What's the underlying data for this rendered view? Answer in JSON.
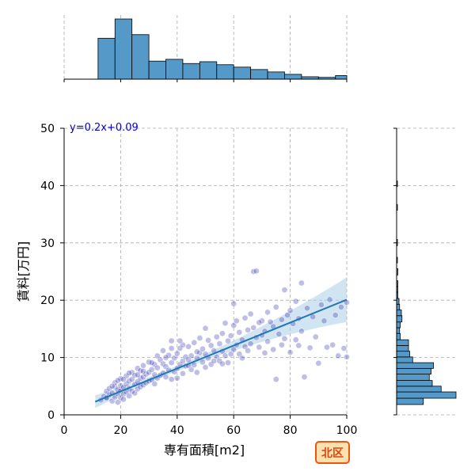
{
  "chart_data": {
    "type": "scatter",
    "xlabel": "専有面積[m2]",
    "ylabel": "賃料[万円]",
    "xlim": [
      0,
      100
    ],
    "ylim": [
      0,
      50
    ],
    "xticks": [
      0,
      20,
      40,
      60,
      80,
      100
    ],
    "yticks": [
      0,
      10,
      20,
      30,
      40,
      50
    ],
    "grid": true,
    "regression": {
      "equation": "y=0.2x+0.09",
      "slope": 0.2,
      "intercept": 0.09,
      "x_range": [
        11,
        100
      ]
    },
    "scatter": {
      "color": "#1a1aa6",
      "points": [
        [
          13,
          2.6
        ],
        [
          14,
          3.2
        ],
        [
          15,
          2.9
        ],
        [
          15,
          4.1
        ],
        [
          16,
          3.5
        ],
        [
          16,
          4.6
        ],
        [
          17,
          2.4
        ],
        [
          17,
          3.8
        ],
        [
          18,
          3.1
        ],
        [
          18,
          4.9
        ],
        [
          18,
          5.6
        ],
        [
          19,
          2.2
        ],
        [
          19,
          3.7
        ],
        [
          19,
          4.4
        ],
        [
          20,
          3.0
        ],
        [
          20,
          4.2
        ],
        [
          20,
          5.1
        ],
        [
          20,
          6.3
        ],
        [
          21,
          3.6
        ],
        [
          21,
          4.8
        ],
        [
          21,
          2.7
        ],
        [
          22,
          4.0
        ],
        [
          22,
          5.4
        ],
        [
          22,
          6.8
        ],
        [
          23,
          3.3
        ],
        [
          23,
          4.6
        ],
        [
          23,
          5.9
        ],
        [
          24,
          4.1
        ],
        [
          24,
          6.2
        ],
        [
          24,
          7.4
        ],
        [
          25,
          3.8
        ],
        [
          25,
          5.3
        ],
        [
          25,
          6.9
        ],
        [
          26,
          4.5
        ],
        [
          26,
          5.8
        ],
        [
          26,
          8.1
        ],
        [
          27,
          4.9
        ],
        [
          27,
          6.4
        ],
        [
          27,
          7.7
        ],
        [
          28,
          5.2
        ],
        [
          28,
          6.6
        ],
        [
          28,
          8.6
        ],
        [
          29,
          5.6
        ],
        [
          29,
          7.1
        ],
        [
          30,
          5.9
        ],
        [
          30,
          7.4
        ],
        [
          30,
          9.2
        ],
        [
          31,
          6.1
        ],
        [
          31,
          7.9
        ],
        [
          32,
          5.4
        ],
        [
          32,
          7.0
        ],
        [
          32,
          8.8
        ],
        [
          33,
          6.4
        ],
        [
          33,
          8.2
        ],
        [
          34,
          6.9
        ],
        [
          34,
          9.6
        ],
        [
          35,
          7.3
        ],
        [
          35,
          8.9
        ],
        [
          35,
          11.2
        ],
        [
          36,
          6.6
        ],
        [
          36,
          8.4
        ],
        [
          37,
          7.8
        ],
        [
          37,
          10.4
        ],
        [
          38,
          6.2
        ],
        [
          38,
          9.1
        ],
        [
          38,
          12.9
        ],
        [
          39,
          7.5
        ],
        [
          39,
          9.9
        ],
        [
          40,
          8.1
        ],
        [
          40,
          10.7
        ],
        [
          40,
          6.4
        ],
        [
          41,
          8.8
        ],
        [
          41,
          11.6
        ],
        [
          42,
          7.2
        ],
        [
          42,
          9.4
        ],
        [
          42,
          12.2
        ],
        [
          43,
          8.5
        ],
        [
          43,
          10.1
        ],
        [
          44,
          9.6
        ],
        [
          44,
          11.9
        ],
        [
          45,
          7.9
        ],
        [
          45,
          10.3
        ],
        [
          46,
          8.7
        ],
        [
          46,
          12.6
        ],
        [
          47,
          9.9
        ],
        [
          47,
          7.4
        ],
        [
          48,
          10.8
        ],
        [
          48,
          13.4
        ],
        [
          49,
          9.2
        ],
        [
          49,
          11.5
        ],
        [
          50,
          8.3
        ],
        [
          50,
          10.6
        ],
        [
          50,
          15.1
        ],
        [
          51,
          9.9
        ],
        [
          52,
          12.1
        ],
        [
          52,
          8.8
        ],
        [
          53,
          11.2
        ],
        [
          54,
          13.6
        ],
        [
          54,
          10.1
        ],
        [
          55,
          9.4
        ],
        [
          55,
          12.4
        ],
        [
          56,
          11.1
        ],
        [
          56,
          14.2
        ],
        [
          57,
          10.3
        ],
        [
          57,
          16.0
        ],
        [
          58,
          12.9
        ],
        [
          58,
          9.1
        ],
        [
          59,
          13.8
        ],
        [
          60,
          11.4
        ],
        [
          60,
          15.6
        ],
        [
          60,
          19.4
        ],
        [
          61,
          12.2
        ],
        [
          62,
          10.6
        ],
        [
          62,
          14.4
        ],
        [
          63,
          13.1
        ],
        [
          64,
          16.9
        ],
        [
          64,
          11.9
        ],
        [
          65,
          14.8
        ],
        [
          66,
          12.4
        ],
        [
          66,
          17.6
        ],
        [
          67,
          15.2
        ],
        [
          67,
          25.0
        ],
        [
          68,
          13.5
        ],
        [
          68,
          25.1
        ],
        [
          69,
          11.8
        ],
        [
          70,
          16.4
        ],
        [
          70,
          13.9
        ],
        [
          71,
          14.6
        ],
        [
          72,
          17.9
        ],
        [
          72,
          12.8
        ],
        [
          73,
          16.2
        ],
        [
          74,
          15.4
        ],
        [
          75,
          6.2
        ],
        [
          75,
          18.8
        ],
        [
          76,
          14.1
        ],
        [
          77,
          16.6
        ],
        [
          78,
          21.8
        ],
        [
          78,
          13.3
        ],
        [
          79,
          17.4
        ],
        [
          80,
          18.2
        ],
        [
          81,
          15.9
        ],
        [
          82,
          19.8
        ],
        [
          82,
          13.1
        ],
        [
          83,
          16.8
        ],
        [
          84,
          23.0
        ],
        [
          84,
          14.6
        ],
        [
          85,
          6.6
        ],
        [
          86,
          18.6
        ],
        [
          88,
          17.1
        ],
        [
          89,
          13.6
        ],
        [
          90,
          9.0
        ],
        [
          91,
          19.2
        ],
        [
          92,
          16.4
        ],
        [
          93,
          11.8
        ],
        [
          94,
          20.1
        ],
        [
          95,
          12.2
        ],
        [
          96,
          17.4
        ],
        [
          97,
          10.3
        ],
        [
          98,
          18.8
        ],
        [
          99,
          11.6
        ],
        [
          100,
          10.1
        ],
        [
          100,
          19.6
        ],
        [
          15,
          3.0
        ],
        [
          17,
          5.0
        ],
        [
          19,
          6.0
        ],
        [
          21,
          6.2
        ],
        [
          23,
          7.3
        ],
        [
          26,
          7.0
        ],
        [
          28,
          7.6
        ],
        [
          31,
          9.1
        ],
        [
          33,
          10.3
        ],
        [
          36,
          10.0
        ],
        [
          38,
          11.6
        ],
        [
          41,
          12.9
        ],
        [
          44,
          8.6
        ],
        [
          47,
          11.0
        ],
        [
          51,
          13.0
        ],
        [
          53,
          9.4
        ],
        [
          56,
          8.9
        ],
        [
          59,
          10.6
        ],
        [
          61,
          16.4
        ],
        [
          63,
          9.9
        ],
        [
          65,
          11.2
        ],
        [
          69,
          16.1
        ],
        [
          71,
          10.8
        ],
        [
          74,
          11.4
        ],
        [
          77,
          12.2
        ],
        [
          80,
          10.9
        ],
        [
          83,
          12.1
        ],
        [
          87,
          11.7
        ]
      ]
    },
    "x_hist": {
      "color": "#5499c7",
      "bins": [
        [
          12,
          18,
          0.68
        ],
        [
          18,
          24,
          1.0
        ],
        [
          24,
          30,
          0.74
        ],
        [
          30,
          36,
          0.3
        ],
        [
          36,
          42,
          0.33
        ],
        [
          42,
          48,
          0.26
        ],
        [
          48,
          54,
          0.29
        ],
        [
          54,
          60,
          0.24
        ],
        [
          60,
          66,
          0.2
        ],
        [
          66,
          72,
          0.16
        ],
        [
          72,
          78,
          0.12
        ],
        [
          78,
          84,
          0.08
        ],
        [
          84,
          90,
          0.04
        ],
        [
          90,
          96,
          0.03
        ],
        [
          96,
          102,
          0.06
        ]
      ]
    },
    "y_hist": {
      "color": "#5499c7",
      "bins": [
        [
          1.8,
          2.9,
          0.45
        ],
        [
          2.9,
          4.0,
          1.0
        ],
        [
          4.0,
          5.0,
          0.75
        ],
        [
          5.0,
          6.0,
          0.6
        ],
        [
          6.0,
          7.1,
          0.55
        ],
        [
          7.1,
          8.1,
          0.58
        ],
        [
          8.1,
          9.1,
          0.62
        ],
        [
          9.1,
          10.1,
          0.27
        ],
        [
          10.1,
          11.1,
          0.22
        ],
        [
          11.1,
          12.1,
          0.2
        ],
        [
          12.1,
          13.1,
          0.2
        ],
        [
          13.1,
          14.2,
          0.06
        ],
        [
          14.2,
          15.2,
          0.05
        ],
        [
          15.2,
          16.2,
          0.06
        ],
        [
          16.2,
          17.3,
          0.09
        ],
        [
          17.3,
          18.3,
          0.08
        ],
        [
          18.3,
          19.3,
          0.05
        ],
        [
          19.3,
          20.3,
          0.04
        ],
        [
          20.3,
          21.4,
          0.02
        ],
        [
          21.4,
          22.4,
          0.02
        ],
        [
          22.4,
          23.4,
          0.02
        ],
        [
          24.4,
          25.5,
          0.02
        ],
        [
          26.5,
          27.5,
          0.01
        ],
        [
          29.5,
          30.6,
          0.01
        ],
        [
          35.7,
          36.7,
          0.01
        ],
        [
          39.8,
          40.8,
          0.01
        ]
      ]
    }
  },
  "badge": {
    "label": "北区",
    "bg": "#ffe0b0",
    "border": "#e8590c",
    "text_color": "#d9480f"
  }
}
